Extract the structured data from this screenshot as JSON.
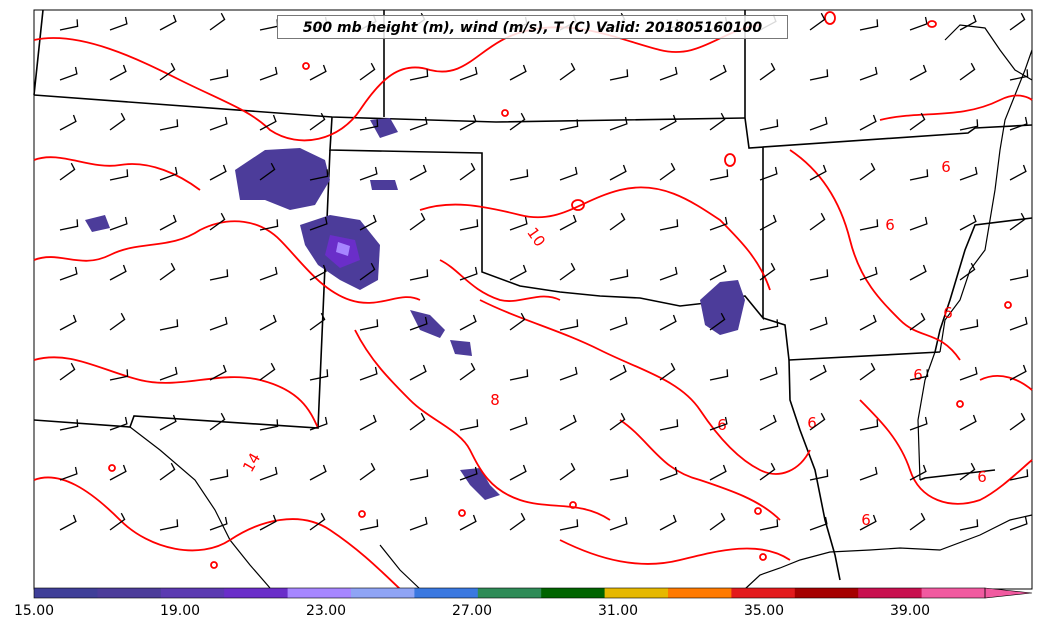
{
  "title": "500 mb height (m), wind (m/s), T (C) Valid: 201805160100",
  "colorbar": {
    "ticks": [
      "15.00",
      "19.00",
      "23.00",
      "27.00",
      "31.00",
      "35.00",
      "39.00"
    ],
    "colors": [
      "#3f3f98",
      "#4c3c9a",
      "#5b3ab1",
      "#6a2ec9",
      "#a686ff",
      "#8fa4f5",
      "#3a78e0",
      "#2e8b57",
      "#006400",
      "#e6b800",
      "#ff7a00",
      "#e31a1c",
      "#a50000",
      "#c8104f",
      "#f15aa0"
    ]
  },
  "contour_labels": [
    "10",
    "14",
    "6",
    "6",
    "6",
    "6",
    "6",
    "6",
    "6",
    "6",
    "8"
  ],
  "colors": {
    "contour": "#ff0000",
    "borders": "#000000",
    "barbs": "#000000"
  }
}
